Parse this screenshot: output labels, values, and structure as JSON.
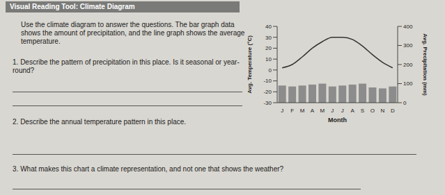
{
  "title": "Visual Reading Tool: Climate Diagram",
  "instructions": "Use the climate diagram to answer the questions. The bar graph data shows the amount of precipitation, and the line graph shows the average temperature.",
  "questions": [
    {
      "number": "1.",
      "text": "Describe the pattern of precipitation in this place. Is it seasonal or year-round?"
    },
    {
      "number": "2.",
      "text": "Describe the annual temperature pattern in this place."
    },
    {
      "number": "3.",
      "text": "What makes this chart a climate representation, and not one that shows the weather?"
    }
  ],
  "chart_data": {
    "type": "bar",
    "categories": [
      "J",
      "F",
      "M",
      "A",
      "M",
      "J",
      "J",
      "A",
      "S",
      "O",
      "N",
      "D"
    ],
    "x_label": "Month",
    "y_label": "Avg. Temperature (°C)",
    "y2_label": "Avg. Precipitation (mm)",
    "ylim": [
      -30,
      40
    ],
    "yticks": [
      -30,
      -20,
      -10,
      0,
      10,
      20,
      30,
      40
    ],
    "y2lim": [
      0,
      400
    ],
    "y2ticks": [
      0,
      100,
      200,
      300,
      400
    ],
    "series": [
      {
        "type": "bar",
        "axis": "y2",
        "color": "#8c8c8c",
        "values": [
          90,
          85,
          90,
          95,
          100,
          85,
          90,
          95,
          100,
          80,
          75,
          85
        ]
      },
      {
        "type": "line",
        "color": "#333333",
        "values": [
          2,
          5,
          12,
          20,
          26,
          30,
          30,
          28,
          22,
          14,
          7,
          2
        ]
      }
    ]
  }
}
